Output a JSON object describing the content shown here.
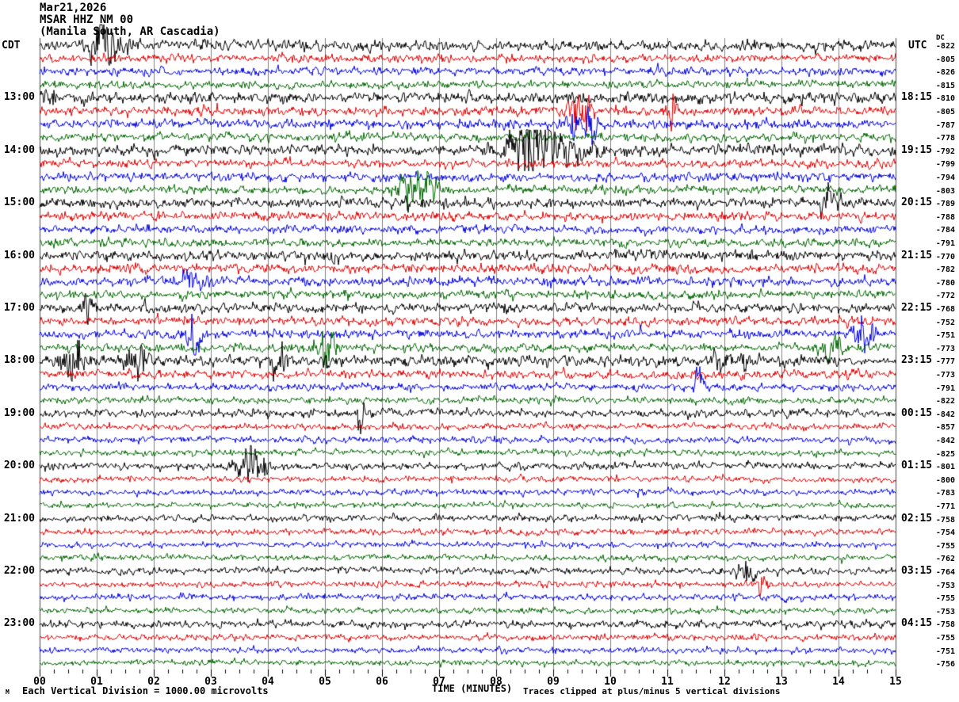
{
  "header": {
    "date": "Mar21,2026",
    "station": "MSAR HHZ NM 00",
    "location": "(Manila South, AR Cascadia)",
    "left_tz": "CDT",
    "right_tz": "UTC",
    "dc_label": "DC"
  },
  "footer": {
    "scale_note": "Each Vertical Division = 1000.00 microvolts",
    "xlabel": "TIME (MINUTES)",
    "clip_note": "Traces clipped at plus/minus 5 vertical divisions",
    "corner_mark": "M"
  },
  "chart_data": {
    "type": "line",
    "subtype": "helicorder-seismogram",
    "minutes_per_row": 15,
    "row_count": 48,
    "x_ticks": [
      "00",
      "01",
      "02",
      "03",
      "04",
      "05",
      "06",
      "07",
      "08",
      "09",
      "10",
      "11",
      "12",
      "13",
      "14",
      "15"
    ],
    "xlabel": "TIME (MINUTES)",
    "colors_cycle": [
      "black",
      "red",
      "blue",
      "green"
    ],
    "trace_colors": {
      "black": "#000000",
      "red": "#dd0000",
      "blue": "#0000dd",
      "green": "#006600"
    },
    "grid_color": "#808080",
    "border_color": "#444444",
    "left_time_labels": [
      {
        "row": 4,
        "label": "13:00"
      },
      {
        "row": 8,
        "label": "14:00"
      },
      {
        "row": 12,
        "label": "15:00"
      },
      {
        "row": 16,
        "label": "16:00"
      },
      {
        "row": 20,
        "label": "17:00"
      },
      {
        "row": 24,
        "label": "18:00"
      },
      {
        "row": 28,
        "label": "19:00"
      },
      {
        "row": 32,
        "label": "20:00"
      },
      {
        "row": 36,
        "label": "21:00"
      },
      {
        "row": 40,
        "label": "22:00"
      },
      {
        "row": 44,
        "label": "23:00"
      }
    ],
    "right_time_labels": [
      {
        "row": 4,
        "label": "18:15"
      },
      {
        "row": 8,
        "label": "19:15"
      },
      {
        "row": 12,
        "label": "20:15"
      },
      {
        "row": 16,
        "label": "21:15"
      },
      {
        "row": 20,
        "label": "22:15"
      },
      {
        "row": 24,
        "label": "23:15"
      },
      {
        "row": 28,
        "label": "00:15"
      },
      {
        "row": 32,
        "label": "01:15"
      },
      {
        "row": 36,
        "label": "02:15"
      },
      {
        "row": 40,
        "label": "03:15"
      },
      {
        "row": 44,
        "label": "04:15"
      }
    ],
    "dc_offsets": [
      -822,
      -805,
      -826,
      -815,
      -810,
      -805,
      -787,
      -778,
      -792,
      -799,
      -794,
      -803,
      -789,
      -788,
      -784,
      -791,
      -770,
      -782,
      -780,
      -772,
      -768,
      -752,
      -751,
      -773,
      -777,
      -773,
      -791,
      -822,
      -842,
      -857,
      -842,
      -825,
      -801,
      -800,
      -783,
      -771,
      -758,
      -754,
      -755,
      -762,
      -764,
      -753,
      -755,
      -753,
      -758,
      -755,
      -751,
      -756
    ],
    "noise_amps": [
      2.9,
      2.3,
      2.3,
      2.1,
      3.1,
      2.5,
      2.6,
      2.3,
      2.9,
      2.4,
      2.4,
      2.3,
      2.7,
      2.4,
      2.2,
      2.2,
      2.8,
      2.6,
      2.5,
      2.3,
      2.7,
      2.4,
      2.4,
      2.2,
      3.0,
      2.3,
      2.0,
      1.9,
      2.2,
      1.8,
      1.8,
      1.8,
      2.0,
      1.7,
      1.7,
      1.6,
      1.9,
      1.7,
      1.6,
      1.6,
      1.9,
      1.7,
      1.7,
      1.6,
      2.1,
      1.8,
      1.6,
      1.6
    ],
    "events_format": [
      "row_index",
      "minute",
      "gauss_width_minutes",
      "amplitude_px"
    ],
    "events": [
      [
        0,
        1.05,
        0.1,
        14
      ],
      [
        0,
        1.35,
        0.2,
        5
      ],
      [
        4,
        0.15,
        0.1,
        7
      ],
      [
        5,
        9.35,
        0.1,
        13
      ],
      [
        5,
        9.6,
        0.06,
        9
      ],
      [
        5,
        11.05,
        0.05,
        15
      ],
      [
        6,
        9.45,
        0.15,
        10
      ],
      [
        6,
        9.7,
        0.04,
        12
      ],
      [
        8,
        8.6,
        0.25,
        24
      ],
      [
        8,
        9.15,
        0.35,
        7
      ],
      [
        11,
        6.6,
        0.25,
        11
      ],
      [
        12,
        13.85,
        0.1,
        9
      ],
      [
        16,
        5.1,
        0.05,
        12
      ],
      [
        18,
        2.65,
        0.12,
        9
      ],
      [
        20,
        0.85,
        0.06,
        9
      ],
      [
        22,
        2.7,
        0.1,
        14
      ],
      [
        22,
        14.45,
        0.12,
        12
      ],
      [
        23,
        5.05,
        0.12,
        10
      ],
      [
        23,
        13.9,
        0.15,
        7
      ],
      [
        24,
        0.55,
        0.15,
        13
      ],
      [
        24,
        1.7,
        0.12,
        12
      ],
      [
        24,
        4.2,
        0.08,
        11
      ],
      [
        24,
        12.1,
        0.2,
        7
      ],
      [
        26,
        11.55,
        0.07,
        11
      ],
      [
        28,
        5.62,
        0.03,
        20
      ],
      [
        32,
        3.7,
        0.18,
        12
      ],
      [
        40,
        12.4,
        0.1,
        7
      ],
      [
        41,
        12.7,
        0.08,
        5
      ]
    ],
    "clip_divisions": 5,
    "scale_microvolts_per_division": 1000.0
  }
}
